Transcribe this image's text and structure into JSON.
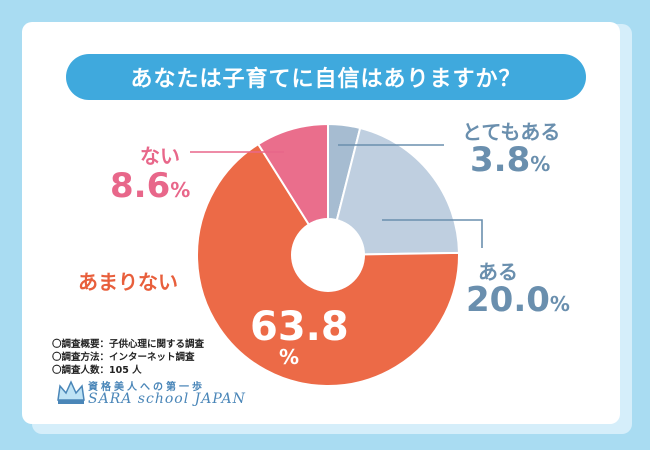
{
  "title": "あなたは子育てに自信はありますか？",
  "chart_data": {
    "type": "pie",
    "title": "あなたは子育てに自信はありますか？",
    "donut": true,
    "categories": [
      "とてもある",
      "ある",
      "あまりない",
      "ない"
    ],
    "values": [
      3.8,
      20.0,
      63.8,
      8.6
    ],
    "colors": [
      "#a6bcd1",
      "#bfcfe0",
      "#ec6a47",
      "#ea6e8c"
    ],
    "labels": {
      "totemo": {
        "name": "とてもある",
        "value": "3.8",
        "unit": "%"
      },
      "aru": {
        "name": "ある",
        "value": "20.0",
        "unit": "%"
      },
      "amari": {
        "name": "あまりない",
        "value": "63.8",
        "unit": "%"
      },
      "nai": {
        "name": "ない",
        "value": "8.6",
        "unit": "%"
      }
    }
  },
  "notes": [
    "〇調査概要：子供心理に関する調査",
    "〇調査方法：インターネット調査",
    "〇調査人数：105 人"
  ],
  "brand": {
    "tagline": "資格美人への第一歩",
    "name": "SARA school JAPAN"
  }
}
